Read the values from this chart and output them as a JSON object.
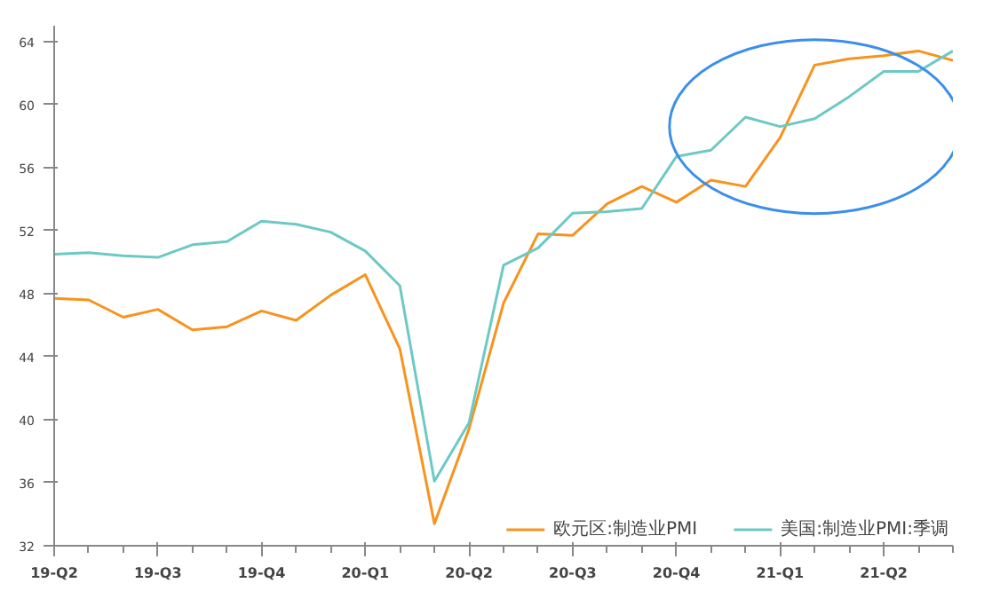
{
  "chart_data": {
    "type": "line",
    "categories": [
      "19-Q2",
      null,
      null,
      "19-Q3",
      null,
      null,
      "19-Q4",
      null,
      null,
      "20-Q1",
      null,
      null,
      "20-Q2",
      null,
      null,
      "20-Q3",
      null,
      null,
      "20-Q4",
      null,
      null,
      "21-Q1",
      null,
      null,
      "21-Q2",
      null,
      null
    ],
    "series": [
      {
        "name": "欧元区:制造业PMI",
        "color": "#f7931e",
        "values": [
          47.7,
          47.6,
          46.5,
          47.0,
          45.7,
          45.9,
          46.9,
          46.3,
          47.9,
          49.2,
          44.5,
          33.4,
          39.4,
          47.4,
          51.8,
          51.7,
          53.7,
          54.8,
          53.8,
          55.2,
          54.8,
          57.9,
          62.5,
          62.9,
          63.1,
          63.4,
          62.8
        ]
      },
      {
        "name": "美国:制造业PMI:季调",
        "color": "#6cc9c4",
        "values": [
          50.5,
          50.6,
          50.4,
          50.3,
          51.1,
          51.3,
          52.6,
          52.4,
          51.9,
          50.7,
          48.5,
          36.1,
          39.8,
          49.8,
          50.9,
          53.1,
          53.2,
          53.4,
          56.7,
          57.1,
          59.2,
          58.6,
          59.1,
          60.5,
          62.1,
          62.1,
          63.4
        ]
      }
    ],
    "ylim": [
      32,
      65
    ],
    "yticks": [
      32,
      36,
      40,
      44,
      48,
      52,
      56,
      60,
      64
    ],
    "grid": false,
    "legend": "bottom"
  }
}
